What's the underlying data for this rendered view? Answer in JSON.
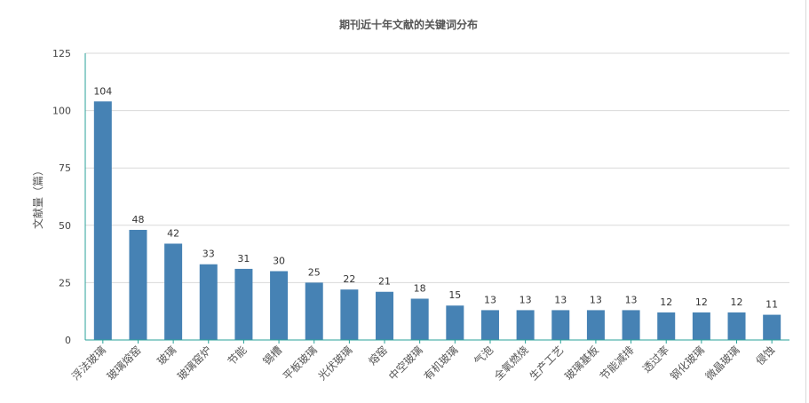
{
  "chart_data": {
    "type": "bar",
    "title": "期刊近十年文献的关键词分布",
    "ylabel": "文献量（篇）",
    "xlabel": "",
    "ylim": [
      0,
      125
    ],
    "yticks": [
      0,
      25,
      50,
      75,
      100,
      125
    ],
    "grid": true,
    "bar_color": "#4682b4",
    "categories": [
      "浮法玻璃",
      "玻璃熔窑",
      "玻璃",
      "玻璃窑炉",
      "节能",
      "锡槽",
      "平板玻璃",
      "光伏玻璃",
      "熔窑",
      "中空玻璃",
      "有机玻璃",
      "气泡",
      "全氧燃烧",
      "生产工艺",
      "玻璃基板",
      "节能减排",
      "透过率",
      "钢化玻璃",
      "微晶玻璃",
      "侵蚀"
    ],
    "values": [
      104,
      48,
      42,
      33,
      31,
      30,
      25,
      22,
      21,
      18,
      15,
      13,
      13,
      13,
      13,
      13,
      12,
      12,
      12,
      11
    ]
  }
}
